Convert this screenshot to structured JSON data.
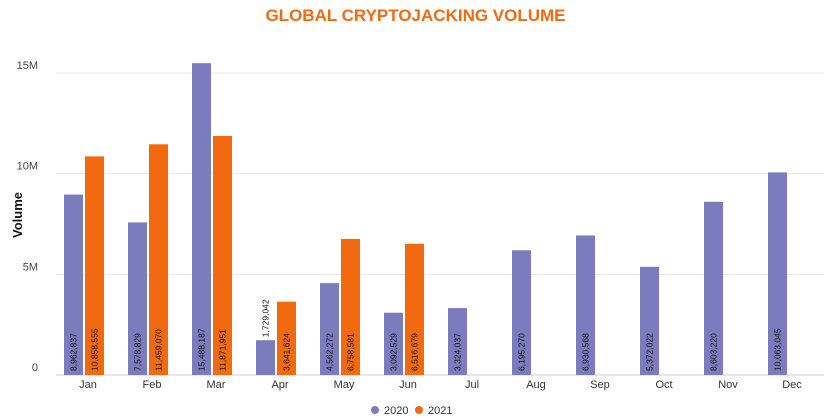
{
  "chart_data": {
    "type": "bar",
    "title": "GLOBAL CRYPTOJACKING VOLUME",
    "xlabel": "",
    "ylabel": "Volume",
    "ylim": [
      0,
      15000000
    ],
    "yticks": [
      0,
      5000000,
      10000000,
      15000000
    ],
    "ytick_labels": [
      "0",
      "5M",
      "10M",
      "15M"
    ],
    "categories": [
      "Jan",
      "Feb",
      "Mar",
      "Apr",
      "May",
      "Jun",
      "Jul",
      "Aug",
      "Sep",
      "Oct",
      "Nov",
      "Dec"
    ],
    "series": [
      {
        "name": "2020",
        "color": "#7a7cbe",
        "values": [
          8962837,
          7578829,
          15488187,
          1729042,
          4562272,
          3092529,
          3324037,
          6195270,
          6930568,
          5372022,
          8603220,
          10063045
        ],
        "labels": [
          "8,962,837",
          "7,578,829",
          "15,488,187",
          "1,729,042",
          "4,562,272",
          "3,092,529",
          "3,324,037",
          "6,195,270",
          "6,930,568",
          "5,372,022",
          "8,603,220",
          "10,063,045"
        ]
      },
      {
        "name": "2021",
        "color": "#f26a10",
        "values": [
          10858555,
          11459070,
          11871951,
          3641624,
          6758581,
          6516679,
          null,
          null,
          null,
          null,
          null,
          null
        ],
        "labels": [
          "10,858,555",
          "11,459,070",
          "11,871,951",
          "3,641,624",
          "6,758,581",
          "6,516,679",
          null,
          null,
          null,
          null,
          null,
          null
        ]
      }
    ],
    "grid": true,
    "legend": "bottom-center",
    "title_color": "#f26a10",
    "bar_label_color": "#111111",
    "bar_label_color_small": "#111111"
  }
}
